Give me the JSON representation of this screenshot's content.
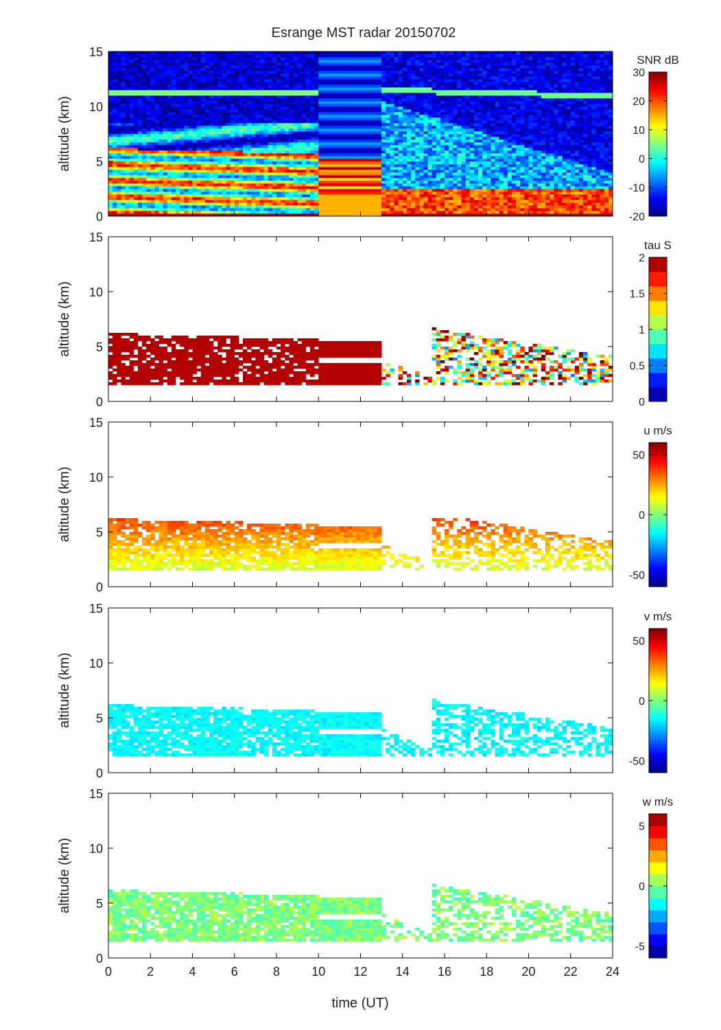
{
  "chart_data": {
    "title": "Esrange MST radar 20150702",
    "type": "heatmap",
    "xlabel": "time (UT)",
    "x_ticks": [
      "0",
      "2",
      "4",
      "6",
      "8",
      "10",
      "12",
      "14",
      "16",
      "18",
      "20",
      "22",
      "24"
    ],
    "xlim": [
      0,
      24
    ],
    "panels": [
      {
        "id": "snr",
        "ylabel": "altitude (km)",
        "ylim": [
          0,
          15
        ],
        "y_ticks": [
          "0",
          "5",
          "10",
          "15"
        ],
        "colorbar_title": "SNR dB",
        "clim": [
          -20,
          30
        ],
        "colorbar_ticks": [
          "30",
          "20",
          "10",
          "0",
          "-10",
          "-20"
        ],
        "colorbar_tick_values": [
          30,
          20,
          10,
          0,
          -10,
          -20
        ],
        "colorbar_steps": 0
      },
      {
        "id": "tau",
        "ylabel": "altitude (km)",
        "ylim": [
          0,
          15
        ],
        "y_ticks": [
          "0",
          "5",
          "10",
          "15"
        ],
        "colorbar_title": "tau S",
        "clim": [
          0,
          2
        ],
        "colorbar_ticks": [
          "2",
          "1.5",
          "1",
          "0.5",
          "0"
        ],
        "colorbar_tick_values": [
          2,
          1.5,
          1,
          0.5,
          0
        ],
        "colorbar_steps": 10
      },
      {
        "id": "u",
        "ylabel": "altitude (km)",
        "ylim": [
          0,
          15
        ],
        "y_ticks": [
          "0",
          "5",
          "10",
          "15"
        ],
        "colorbar_title": "u m/s",
        "clim": [
          -60,
          60
        ],
        "colorbar_ticks": [
          "50",
          "0",
          "-50"
        ],
        "colorbar_tick_values": [
          50,
          0,
          -50
        ],
        "colorbar_steps": 0
      },
      {
        "id": "v",
        "ylabel": "altitude (km)",
        "ylim": [
          0,
          15
        ],
        "y_ticks": [
          "0",
          "5",
          "10",
          "15"
        ],
        "colorbar_title": "v m/s",
        "clim": [
          -60,
          60
        ],
        "colorbar_ticks": [
          "50",
          "0",
          "-50"
        ],
        "colorbar_tick_values": [
          50,
          0,
          -50
        ],
        "colorbar_steps": 0
      },
      {
        "id": "w",
        "ylabel": "altitude (km)",
        "ylim": [
          0,
          15
        ],
        "y_ticks": [
          "0",
          "5",
          "10",
          "15"
        ],
        "colorbar_title": "w m/s",
        "clim": [
          -6,
          6
        ],
        "colorbar_ticks": [
          "5",
          "0",
          "-5"
        ],
        "colorbar_tick_values": [
          5,
          0,
          -5
        ],
        "colorbar_steps": 12
      }
    ],
    "colormap": "jet"
  }
}
